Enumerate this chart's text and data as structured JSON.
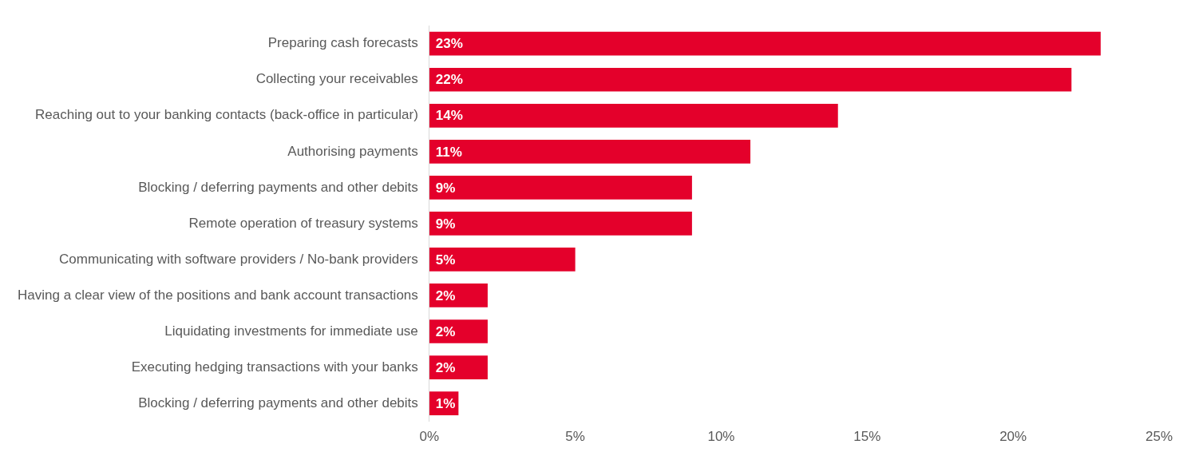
{
  "chart_data": {
    "type": "bar",
    "orientation": "horizontal",
    "categories": [
      "Preparing cash forecasts",
      "Collecting your receivables",
      "Reaching out to your banking contacts (back-office in particular)",
      "Authorising payments",
      "Blocking / deferring payments and other debits",
      "Remote operation of treasury systems",
      "Communicating with software providers / No-bank providers",
      "Having a clear view of the positions and bank account transactions",
      "Liquidating investments for immediate use",
      "Executing hedging transactions with your banks",
      "Blocking / deferring payments and other debits"
    ],
    "values": [
      23,
      22,
      14,
      11,
      9,
      9,
      5,
      2,
      2,
      2,
      1
    ],
    "value_labels": [
      "23%",
      "22%",
      "14%",
      "11%",
      "9%",
      "9%",
      "5%",
      "2%",
      "2%",
      "2%",
      "1%"
    ],
    "color": "#e4002b",
    "xlim": [
      0,
      25
    ],
    "xticks": [
      {
        "value": 0,
        "label": "0%"
      },
      {
        "value": 5,
        "label": "5%"
      },
      {
        "value": 10,
        "label": "10%"
      },
      {
        "value": 15,
        "label": "15%"
      },
      {
        "value": 20,
        "label": "20%"
      },
      {
        "value": 25,
        "label": "25%"
      }
    ],
    "grid": false,
    "legend": false
  }
}
